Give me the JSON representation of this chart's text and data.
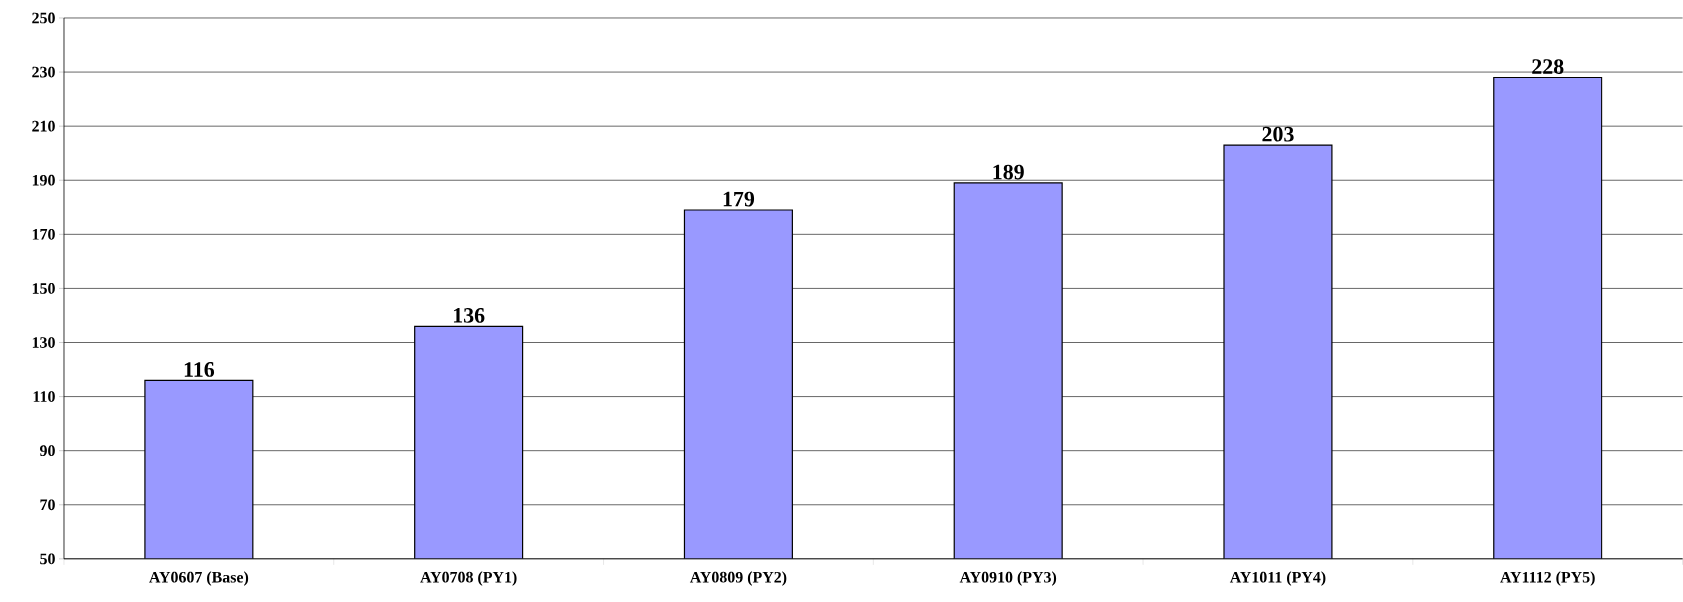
{
  "chart_data": {
    "type": "bar",
    "categories": [
      "AY0607 (Base)",
      "AY0708 (PY1)",
      "AY0809 (PY2)",
      "AY0910 (PY3)",
      "AY1011 (PY4)",
      "AY1112 (PY5)"
    ],
    "values": [
      116,
      136,
      179,
      189,
      203,
      228
    ],
    "color": "#9999ff",
    "ylim": [
      50,
      250
    ],
    "yticks": [
      50,
      70,
      90,
      110,
      130,
      150,
      170,
      190,
      210,
      230,
      250
    ],
    "grid": "y",
    "data_labels": true
  }
}
